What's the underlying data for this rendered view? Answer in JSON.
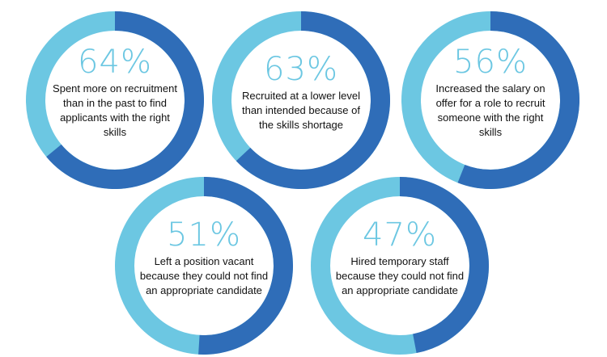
{
  "colors": {
    "value_arc": "#2f6db8",
    "remainder_arc": "#6cc7e2",
    "percent_text": "#6cc7e2",
    "label_text": "#111111"
  },
  "chart_data": {
    "type": "donut",
    "title": "",
    "items": [
      {
        "percent_label": "64%",
        "value": 64,
        "label": "Spent more on recruitment than in the past to find applicants with the right skills"
      },
      {
        "percent_label": "63%",
        "value": 63,
        "label": "Recruited at a lower level than intended because of the skills shortage"
      },
      {
        "percent_label": "56%",
        "value": 56,
        "label": "Increased the salary on offer for a role to recruit someone with the right skills"
      },
      {
        "percent_label": "51%",
        "value": 51,
        "label": "Left a position vacant because they could not find an appropriate candidate"
      },
      {
        "percent_label": "47%",
        "value": 47,
        "label": "Hired temporary staff because they could not find an appropriate candidate"
      }
    ]
  }
}
